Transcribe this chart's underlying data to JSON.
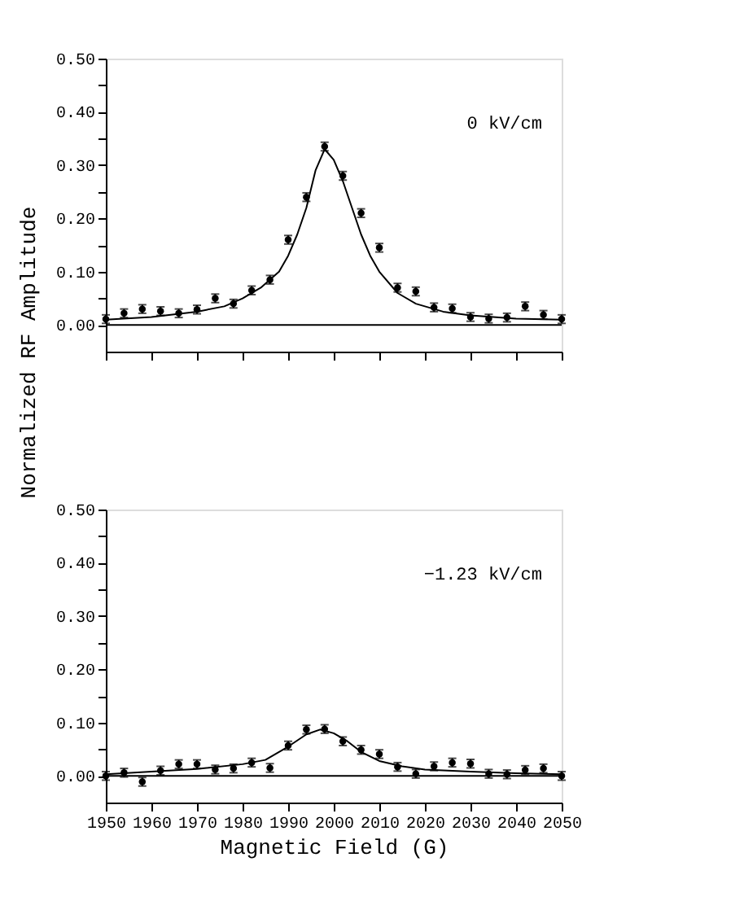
{
  "chart_data": [
    {
      "type": "scatter",
      "ylabel": "Normalized RF Amplitude",
      "annotations": [
        "0 kV/cm"
      ],
      "xlim": [
        1950,
        2050
      ],
      "ylim": [
        -0.05,
        0.5
      ],
      "tick_labels": "y",
      "grid": false,
      "xticks": [
        1950,
        1960,
        1970,
        1980,
        1990,
        2000,
        2010,
        2020,
        2030,
        2040,
        2050
      ],
      "yticks": [
        {
          "value": 0,
          "label": "0.00"
        },
        {
          "value": 0.05,
          "label": null
        },
        {
          "value": 0.1,
          "label": "0.10"
        },
        {
          "value": 0.15,
          "label": null
        },
        {
          "value": 0.2,
          "label": "0.20"
        },
        {
          "value": 0.25,
          "label": null
        },
        {
          "value": 0.3,
          "label": "0.30"
        },
        {
          "value": 0.35,
          "label": null
        },
        {
          "value": 0.4,
          "label": "0.40"
        },
        {
          "value": 0.45,
          "label": null
        },
        {
          "value": 0.5,
          "label": "0.50"
        }
      ],
      "ref_lines": [
        {
          "axis": "y",
          "value": 0,
          "color": "#000000"
        }
      ],
      "series": [
        {
          "type": "scatter",
          "marker": "circle",
          "color": "#000000",
          "x": [
            1950,
            1954,
            1958,
            1962,
            1966,
            1970,
            1974,
            1978,
            1982,
            1986,
            1990,
            1994,
            1998,
            2002,
            2006,
            2010,
            2014,
            2018,
            2022,
            2026,
            2030,
            2034,
            2038,
            2042,
            2046,
            2050
          ],
          "values": [
            0.011,
            0.022,
            0.03,
            0.026,
            0.022,
            0.029,
            0.05,
            0.04,
            0.065,
            0.085,
            0.16,
            0.24,
            0.335,
            0.28,
            0.21,
            0.145,
            0.07,
            0.063,
            0.033,
            0.031,
            0.015,
            0.012,
            0.014,
            0.035,
            0.019,
            0.011
          ],
          "errors": [
            0.008,
            0.008,
            0.008,
            0.008,
            0.008,
            0.008,
            0.008,
            0.008,
            0.008,
            0.008,
            0.008,
            0.008,
            0.008,
            0.008,
            0.008,
            0.008,
            0.008,
            0.008,
            0.008,
            0.008,
            0.008,
            0.008,
            0.008,
            0.008,
            0.008,
            0.008
          ]
        },
        {
          "type": "line",
          "line_style": "solid",
          "color": "#000000",
          "x": [
            1950,
            1960,
            1970,
            1976,
            1980,
            1984,
            1988,
            1990,
            1992,
            1994,
            1996,
            1998,
            2000,
            2002,
            2004,
            2006,
            2008,
            2010,
            2014,
            2018,
            2024,
            2030,
            2040,
            2050
          ],
          "values": [
            0.01,
            0.015,
            0.025,
            0.035,
            0.05,
            0.07,
            0.1,
            0.13,
            0.17,
            0.22,
            0.29,
            0.33,
            0.31,
            0.27,
            0.22,
            0.17,
            0.13,
            0.1,
            0.06,
            0.04,
            0.025,
            0.018,
            0.012,
            0.01
          ]
        }
      ]
    },
    {
      "type": "scatter",
      "xlabel": "Magnetic Field (G)",
      "annotations": [
        "−1.23 kV/cm"
      ],
      "xlim": [
        1950,
        2050
      ],
      "ylim": [
        -0.05,
        0.5
      ],
      "grid": false,
      "xticks": [
        1950,
        1960,
        1970,
        1980,
        1990,
        2000,
        2010,
        2020,
        2030,
        2040,
        2050
      ],
      "yticks": [
        {
          "value": 0,
          "label": "0.00"
        },
        {
          "value": 0.05,
          "label": null
        },
        {
          "value": 0.1,
          "label": "0.10"
        },
        {
          "value": 0.15,
          "label": null
        },
        {
          "value": 0.2,
          "label": "0.20"
        },
        {
          "value": 0.25,
          "label": null
        },
        {
          "value": 0.3,
          "label": "0.30"
        },
        {
          "value": 0.35,
          "label": null
        },
        {
          "value": 0.4,
          "label": "0.40"
        },
        {
          "value": 0.45,
          "label": null
        },
        {
          "value": 0.5,
          "label": "0.50"
        }
      ],
      "ref_lines": [
        {
          "axis": "y",
          "value": 0,
          "color": "#000000"
        }
      ],
      "series": [
        {
          "type": "scatter",
          "marker": "circle",
          "color": "#000000",
          "x": [
            1950,
            1954,
            1958,
            1962,
            1966,
            1970,
            1974,
            1978,
            1982,
            1986,
            1990,
            1994,
            1998,
            2002,
            2006,
            2010,
            2014,
            2018,
            2022,
            2026,
            2030,
            2034,
            2038,
            2042,
            2046,
            2050
          ],
          "values": [
            0.0,
            0.006,
            -0.011,
            0.01,
            0.022,
            0.022,
            0.012,
            0.014,
            0.025,
            0.015,
            0.057,
            0.087,
            0.088,
            0.065,
            0.049,
            0.041,
            0.017,
            0.004,
            0.018,
            0.025,
            0.023,
            0.004,
            0.003,
            0.011,
            0.014,
            0.0
          ],
          "errors": [
            0.008,
            0.008,
            0.008,
            0.008,
            0.008,
            0.008,
            0.008,
            0.008,
            0.008,
            0.008,
            0.008,
            0.008,
            0.008,
            0.008,
            0.008,
            0.008,
            0.008,
            0.008,
            0.008,
            0.008,
            0.008,
            0.008,
            0.008,
            0.008,
            0.008,
            0.008
          ]
        },
        {
          "type": "line",
          "line_style": "solid",
          "color": "#000000",
          "x": [
            1950,
            1960,
            1970,
            1980,
            1985,
            1990,
            1994,
            1997,
            2000,
            2003,
            2006,
            2010,
            2015,
            2020,
            2030,
            2040,
            2050
          ],
          "values": [
            0.003,
            0.008,
            0.013,
            0.022,
            0.03,
            0.055,
            0.078,
            0.087,
            0.08,
            0.065,
            0.045,
            0.028,
            0.018,
            0.012,
            0.008,
            0.005,
            0.003
          ]
        }
      ]
    }
  ]
}
